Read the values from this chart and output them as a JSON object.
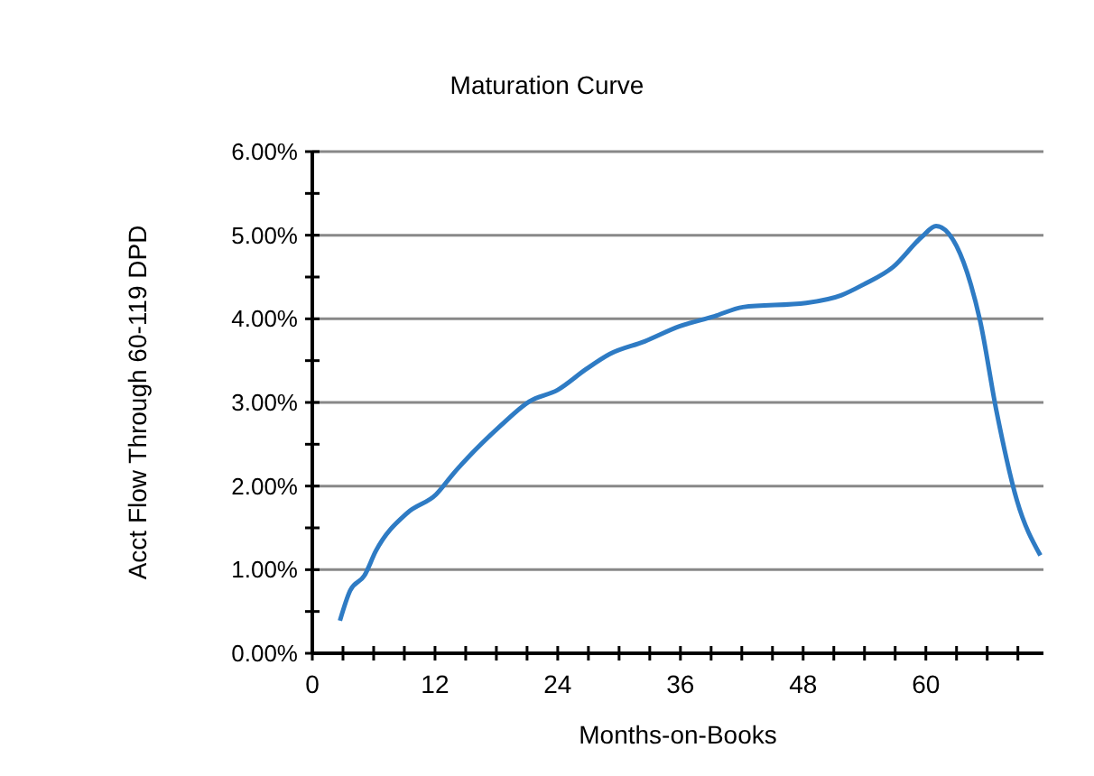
{
  "chart_data": {
    "type": "line",
    "title": "Maturation Curve",
    "xlabel": "Months-on-Books",
    "ylabel": "Acct Flow Through 60-119 DPD",
    "x": [
      2.7,
      3.7,
      5.1,
      6.2,
      9.3,
      12.1,
      13.8,
      18.4,
      21.2,
      24,
      26.8,
      29.1,
      32.5,
      35.9,
      39.3,
      42.1,
      48.3,
      51.7,
      53.9,
      56.8,
      59.6,
      61,
      63,
      64.4,
      65.3,
      66.9,
      68.9,
      71.2
    ],
    "series": [
      {
        "color": "#2e7bc4",
        "values": [
          0.39,
          0.75,
          0.93,
          1.22,
          1.68,
          1.9,
          2.15,
          2.72,
          3.01,
          3.15,
          3.4,
          3.58,
          3.73,
          3.91,
          4.03,
          4.14,
          4.19,
          4.28,
          4.41,
          4.62,
          4.98,
          5.11,
          4.87,
          4.41,
          3.98,
          2.9,
          1.83,
          1.17
        ]
      }
    ],
    "xlim": [
      0,
      71.5
    ],
    "xticks": [
      0,
      {
        "value": 3,
        "label": null
      },
      {
        "value": 6,
        "label": null
      },
      {
        "value": 9,
        "label": null
      },
      12,
      {
        "value": 15,
        "label": null
      },
      {
        "value": 18,
        "label": null
      },
      {
        "value": 21,
        "label": null
      },
      24,
      {
        "value": 27,
        "label": null
      },
      {
        "value": 30,
        "label": null
      },
      {
        "value": 33,
        "label": null
      },
      36,
      {
        "value": 39,
        "label": null
      },
      {
        "value": 42,
        "label": null
      },
      {
        "value": 45,
        "label": null
      },
      48,
      {
        "value": 51,
        "label": null
      },
      {
        "value": 54,
        "label": null
      },
      {
        "value": 57,
        "label": null
      },
      60,
      {
        "value": 63,
        "label": null
      },
      {
        "value": 66,
        "label": null
      },
      {
        "value": 69,
        "label": null
      }
    ],
    "ylim": [
      0,
      6
    ],
    "yticks": [
      {
        "value": 0,
        "label": "0.00%"
      },
      {
        "value": 0.5,
        "label": null
      },
      {
        "value": 1,
        "label": "1.00%"
      },
      {
        "value": 1.5,
        "label": null
      },
      {
        "value": 2,
        "label": "2.00%"
      },
      {
        "value": 2.5,
        "label": null
      },
      {
        "value": 3,
        "label": "3.00%"
      },
      {
        "value": 3.5,
        "label": null
      },
      {
        "value": 4,
        "label": "4.00%"
      },
      {
        "value": 4.5,
        "label": null
      },
      {
        "value": 5,
        "label": "5.00%"
      },
      {
        "value": 5.5,
        "label": null
      },
      {
        "value": 6,
        "label": "6.00%"
      }
    ],
    "grid": "y",
    "marker": "none",
    "line_style": "solid"
  }
}
